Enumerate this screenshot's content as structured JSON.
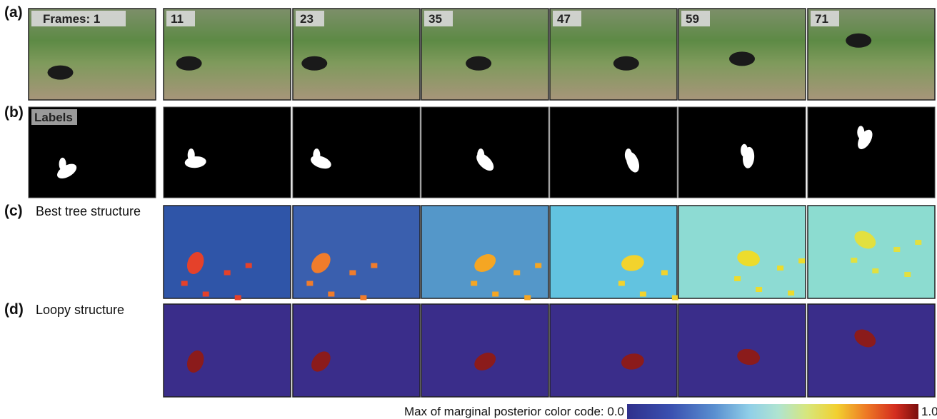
{
  "rows": [
    {
      "label": "(a)"
    },
    {
      "label": "(b)"
    },
    {
      "label": "(c)",
      "title": "Best tree structure"
    },
    {
      "label": "(d)",
      "title": "Loopy structure"
    }
  ],
  "frames": [
    "Frames: 1",
    "11",
    "23",
    "35",
    "47",
    "59",
    "71"
  ],
  "labels_tag": "Labels",
  "colorbar": {
    "caption": "Max of marginal posterior color code:",
    "min": "0.0",
    "max": "1.0"
  }
}
